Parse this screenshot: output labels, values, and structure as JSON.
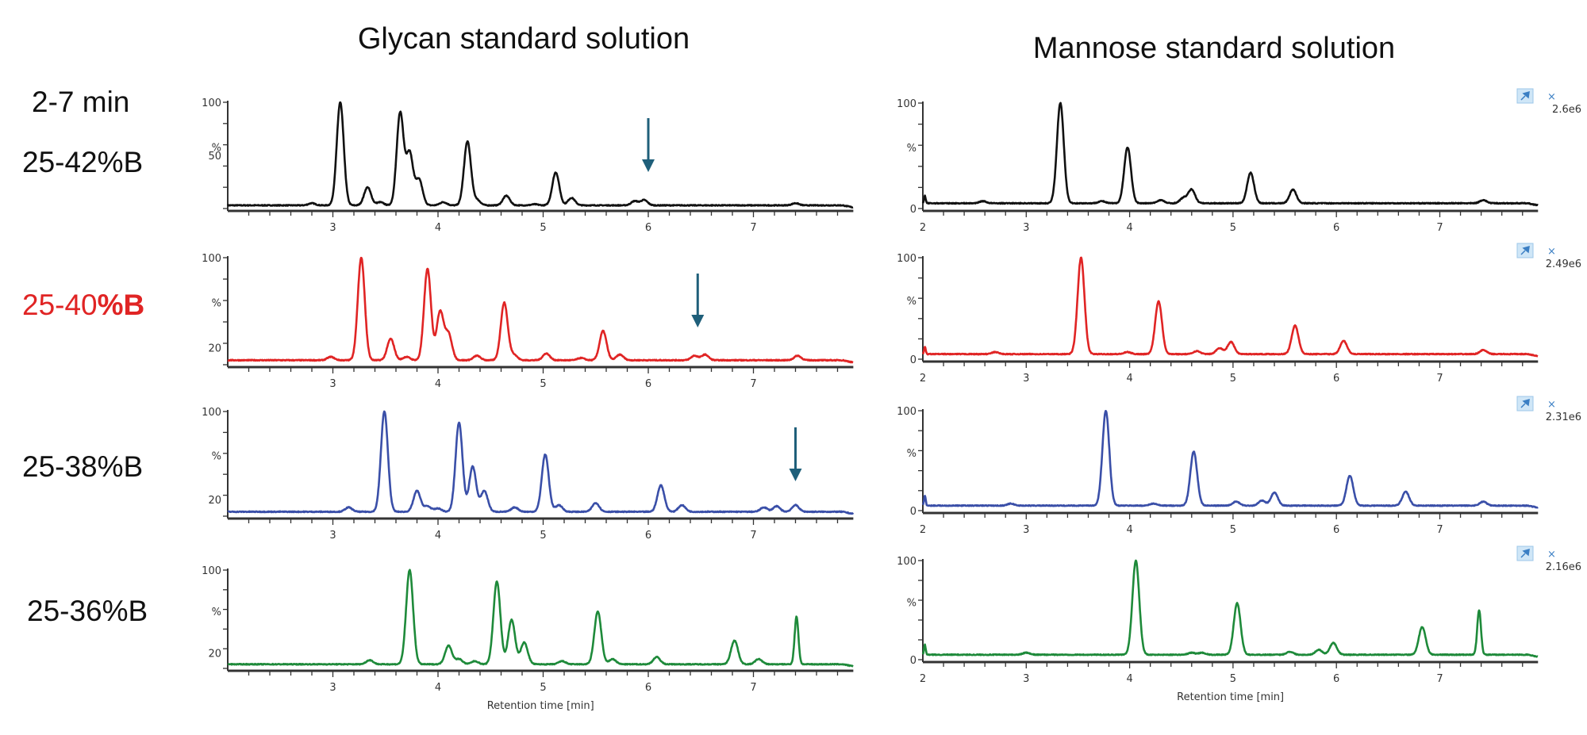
{
  "headers": {
    "left": "Glycan standard solution",
    "right": "Mannose standard solution"
  },
  "row_labels": [
    {
      "lines": [
        "2-7 min",
        "25-42%B"
      ],
      "color": "#111111"
    },
    {
      "parts": [
        "25-40",
        "%B"
      ],
      "color": "#e02424"
    },
    {
      "text": "25-38%B",
      "color": "#111111"
    },
    {
      "text": "25-36%B",
      "color": "#111111"
    }
  ],
  "colors": {
    "arrow": "#1f5f7a",
    "badge": "#cfe6f7",
    "badge_icon": "#3b7fc4"
  },
  "chart_data": [
    {
      "type": "line",
      "panel": "glycan-25-42",
      "color": "#111111",
      "xlim": [
        2,
        7.95
      ],
      "ylim": [
        0,
        100
      ],
      "yticks": [
        "100",
        "%",
        "50"
      ],
      "ytick_values": [
        100,
        null,
        50
      ],
      "xticks": [
        3,
        4,
        5,
        6,
        7
      ],
      "baseline": 3,
      "xlabel": "",
      "arrow_at": 6.0,
      "peaks": [
        [
          2.8,
          5
        ],
        [
          3.07,
          100
        ],
        [
          3.33,
          20
        ],
        [
          3.45,
          6
        ],
        [
          3.64,
          90
        ],
        [
          3.73,
          52
        ],
        [
          3.82,
          27
        ],
        [
          4.05,
          6
        ],
        [
          4.28,
          63
        ],
        [
          4.37,
          8
        ],
        [
          4.65,
          12
        ],
        [
          4.92,
          4
        ],
        [
          5.12,
          34
        ],
        [
          5.27,
          10
        ],
        [
          5.87,
          7
        ],
        [
          5.96,
          8
        ],
        [
          7.4,
          5
        ]
      ]
    },
    {
      "type": "line",
      "panel": "glycan-25-40",
      "color": "#e02424",
      "xlim": [
        2,
        7.95
      ],
      "ylim": [
        5,
        100
      ],
      "yticks": [
        "100",
        "%",
        "20"
      ],
      "ytick_values": [
        100,
        null,
        20
      ],
      "xticks": [
        3,
        4,
        5,
        6,
        7
      ],
      "baseline": 9,
      "xlabel": "",
      "arrow_at": 6.47,
      "peaks": [
        [
          2.98,
          12
        ],
        [
          3.27,
          100
        ],
        [
          3.55,
          28
        ],
        [
          3.7,
          12
        ],
        [
          3.9,
          90
        ],
        [
          4.02,
          52
        ],
        [
          4.1,
          32
        ],
        [
          4.37,
          13
        ],
        [
          4.63,
          60
        ],
        [
          4.72,
          14
        ],
        [
          5.03,
          15
        ],
        [
          5.36,
          11
        ],
        [
          5.57,
          35
        ],
        [
          5.73,
          14
        ],
        [
          6.44,
          13
        ],
        [
          6.54,
          14
        ],
        [
          7.42,
          13
        ]
      ]
    },
    {
      "type": "line",
      "panel": "glycan-25-38",
      "color": "#3a4fa8",
      "xlim": [
        2,
        7.95
      ],
      "ylim": [
        5,
        100
      ],
      "yticks": [
        "100",
        "%",
        "20"
      ],
      "ytick_values": [
        100,
        null,
        20
      ],
      "xticks": [
        3,
        4,
        5,
        6,
        7
      ],
      "baseline": 9,
      "xlabel": "",
      "arrow_at": 7.4,
      "peaks": [
        [
          3.15,
          13
        ],
        [
          3.49,
          100
        ],
        [
          3.8,
          28
        ],
        [
          3.9,
          14
        ],
        [
          4.0,
          12
        ],
        [
          4.2,
          90
        ],
        [
          4.33,
          50
        ],
        [
          4.44,
          28
        ],
        [
          4.73,
          13
        ],
        [
          5.02,
          61
        ],
        [
          5.15,
          15
        ],
        [
          5.5,
          17
        ],
        [
          6.12,
          33
        ],
        [
          6.32,
          15
        ],
        [
          7.1,
          13
        ],
        [
          7.22,
          14
        ],
        [
          7.4,
          15
        ]
      ]
    },
    {
      "type": "line",
      "panel": "glycan-25-36",
      "color": "#1e8a3a",
      "xlim": [
        2,
        7.95
      ],
      "ylim": [
        5,
        100
      ],
      "yticks": [
        "100",
        "%",
        "20"
      ],
      "ytick_values": [
        100,
        null,
        20
      ],
      "xticks": [
        3,
        4,
        5,
        6,
        7
      ],
      "baseline": 9,
      "xlabel": "Retention time [min]",
      "peaks": [
        [
          3.35,
          13
        ],
        [
          3.73,
          100
        ],
        [
          4.1,
          27
        ],
        [
          4.2,
          14
        ],
        [
          4.35,
          12
        ],
        [
          4.56,
          89
        ],
        [
          4.7,
          52
        ],
        [
          4.82,
          30
        ],
        [
          5.18,
          12
        ],
        [
          5.52,
          60
        ],
        [
          5.66,
          14
        ],
        [
          6.08,
          16
        ],
        [
          6.82,
          32
        ],
        [
          7.05,
          14
        ],
        [
          7.41,
          55
        ]
      ]
    },
    {
      "type": "line",
      "panel": "mannose-25-42",
      "color": "#111111",
      "xlim": [
        2,
        7.95
      ],
      "ylim": [
        0,
        100
      ],
      "yticks": [
        "100",
        "%",
        "0"
      ],
      "ytick_values": [
        100,
        null,
        0
      ],
      "xticks": [
        2,
        3,
        4,
        5,
        6,
        7
      ],
      "baseline": 5,
      "xlabel": "",
      "max_intensity": "2.6e6",
      "peaks": [
        [
          2.02,
          12
        ],
        [
          2.58,
          7
        ],
        [
          3.33,
          100
        ],
        [
          3.73,
          7
        ],
        [
          3.98,
          58
        ],
        [
          4.3,
          8
        ],
        [
          4.52,
          10
        ],
        [
          4.6,
          18
        ],
        [
          5.17,
          34
        ],
        [
          5.58,
          18
        ],
        [
          7.42,
          8
        ]
      ]
    },
    {
      "type": "line",
      "panel": "mannose-25-40",
      "color": "#e02424",
      "xlim": [
        2,
        7.95
      ],
      "ylim": [
        0,
        100
      ],
      "yticks": [
        "100",
        "%",
        "0"
      ],
      "ytick_values": [
        100,
        null,
        0
      ],
      "xticks": [
        2,
        3,
        4,
        5,
        6,
        7
      ],
      "baseline": 5,
      "xlabel": "",
      "max_intensity": "2.49e6",
      "peaks": [
        [
          2.02,
          12
        ],
        [
          2.7,
          7
        ],
        [
          3.53,
          100
        ],
        [
          3.98,
          7
        ],
        [
          4.28,
          57
        ],
        [
          4.65,
          8
        ],
        [
          4.87,
          11
        ],
        [
          4.98,
          17
        ],
        [
          5.6,
          33
        ],
        [
          6.07,
          18
        ],
        [
          7.42,
          9
        ]
      ]
    },
    {
      "type": "line",
      "panel": "mannose-25-38",
      "color": "#3a4fa8",
      "xlim": [
        2,
        7.95
      ],
      "ylim": [
        0,
        100
      ],
      "yticks": [
        "100",
        "%",
        "0"
      ],
      "ytick_values": [
        100,
        null,
        0
      ],
      "xticks": [
        2,
        3,
        4,
        5,
        6,
        7
      ],
      "baseline": 5,
      "xlabel": "",
      "max_intensity": "2.31e6",
      "peaks": [
        [
          2.02,
          15
        ],
        [
          2.85,
          7
        ],
        [
          3.77,
          100
        ],
        [
          4.23,
          7
        ],
        [
          4.62,
          59
        ],
        [
          5.03,
          9
        ],
        [
          5.28,
          10
        ],
        [
          5.4,
          18
        ],
        [
          6.13,
          35
        ],
        [
          6.67,
          19
        ],
        [
          7.42,
          9
        ]
      ]
    },
    {
      "type": "line",
      "panel": "mannose-25-36",
      "color": "#1e8a3a",
      "xlim": [
        2,
        7.95
      ],
      "ylim": [
        0,
        100
      ],
      "yticks": [
        "100",
        "%",
        "0"
      ],
      "ytick_values": [
        100,
        null,
        0
      ],
      "xticks": [
        2,
        3,
        4,
        5,
        6,
        7
      ],
      "baseline": 5,
      "xlabel": "Retention time [min]",
      "max_intensity": "2.16e6",
      "peaks": [
        [
          2.02,
          15
        ],
        [
          3.0,
          7
        ],
        [
          4.06,
          100
        ],
        [
          4.6,
          7
        ],
        [
          4.7,
          7
        ],
        [
          5.04,
          57
        ],
        [
          5.55,
          8
        ],
        [
          5.83,
          10
        ],
        [
          5.97,
          17
        ],
        [
          6.83,
          33
        ],
        [
          7.38,
          50
        ]
      ]
    }
  ]
}
